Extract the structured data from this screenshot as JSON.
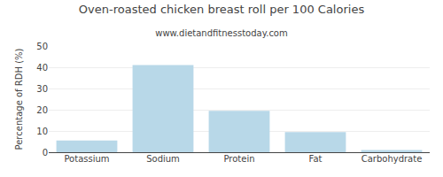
{
  "chart_data": {
    "type": "bar",
    "title": "Oven-roasted chicken breast roll per 100 Calories",
    "subtitle": "www.dietandfitnesstoday.com",
    "categories": [
      "Potassium",
      "Sodium",
      "Protein",
      "Fat",
      "Carbohydrate"
    ],
    "values": [
      5.5,
      41.0,
      19.5,
      9.5,
      1.0
    ],
    "color": "#b8d8e8",
    "ylabel": "Percentage of RDH (%)",
    "ylim": [
      0,
      50
    ],
    "yticks": [
      0,
      10,
      20,
      30,
      40,
      50
    ],
    "grid": true
  }
}
